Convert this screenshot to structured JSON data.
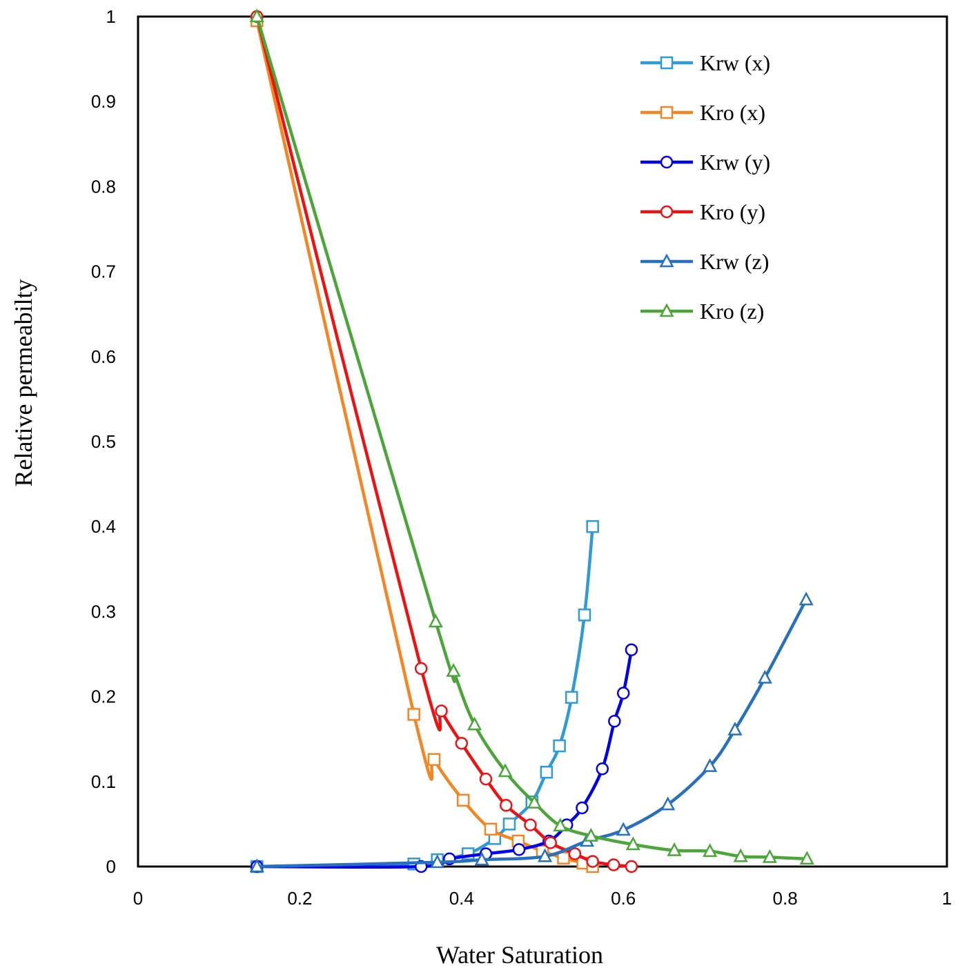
{
  "chart_data": {
    "type": "line",
    "xlabel": "Water Saturation",
    "ylabel": "Relative permeabilty",
    "xlim": [
      0,
      1
    ],
    "ylim": [
      0,
      1
    ],
    "x_ticks": [
      "0",
      "0.2",
      "0.4",
      "0.6",
      "0.8",
      "1"
    ],
    "y_ticks": [
      "0",
      "0.1",
      "0.2",
      "0.3",
      "0.4",
      "0.5",
      "0.6",
      "0.7",
      "0.8",
      "0.9",
      "1"
    ],
    "grid": false,
    "legend_position": "top-right",
    "series": [
      {
        "name": "Krw (x)",
        "color": "#2e9ad6",
        "marker": "square",
        "x": [
          0.147,
          0.341,
          0.37,
          0.408,
          0.441,
          0.459,
          0.487,
          0.505,
          0.521,
          0.536,
          0.552,
          0.562
        ],
        "y": [
          0.0,
          0.003,
          0.008,
          0.015,
          0.033,
          0.05,
          0.076,
          0.111,
          0.142,
          0.199,
          0.296,
          0.4
        ]
      },
      {
        "name": "Kro (x)",
        "color": "#f58523",
        "marker": "square",
        "x": [
          0.147,
          0.341,
          0.366,
          0.402,
          0.436,
          0.47,
          0.5,
          0.526,
          0.55,
          0.562
        ],
        "y": [
          0.995,
          0.179,
          0.126,
          0.078,
          0.044,
          0.03,
          0.018,
          0.01,
          0.004,
          0.0
        ]
      },
      {
        "name": "Krw (y)",
        "color": "#0000ee",
        "marker": "circle",
        "x": [
          0.147,
          0.35,
          0.385,
          0.43,
          0.471,
          0.508,
          0.53,
          0.549,
          0.574,
          0.589,
          0.6,
          0.61
        ],
        "y": [
          0.0,
          0.0,
          0.009,
          0.015,
          0.02,
          0.03,
          0.049,
          0.069,
          0.115,
          0.171,
          0.204,
          0.255
        ]
      },
      {
        "name": "Kro (y)",
        "color": "#ee1111",
        "marker": "circle",
        "x": [
          0.147,
          0.35,
          0.375,
          0.4,
          0.43,
          0.455,
          0.485,
          0.51,
          0.54,
          0.562,
          0.588,
          0.61
        ],
        "y": [
          1.0,
          0.233,
          0.183,
          0.145,
          0.103,
          0.072,
          0.049,
          0.028,
          0.015,
          0.006,
          0.002,
          0.0
        ]
      },
      {
        "name": "Krw (z)",
        "color": "#2671bf",
        "marker": "triangle",
        "x": [
          0.147,
          0.37,
          0.425,
          0.503,
          0.555,
          0.6,
          0.655,
          0.707,
          0.738,
          0.775,
          0.826
        ],
        "y": [
          0.0,
          0.005,
          0.008,
          0.012,
          0.03,
          0.043,
          0.073,
          0.118,
          0.161,
          0.222,
          0.314
        ]
      },
      {
        "name": "Kro (z)",
        "color": "#4aa637",
        "marker": "triangle",
        "x": [
          0.147,
          0.368,
          0.39,
          0.416,
          0.454,
          0.49,
          0.522,
          0.56,
          0.612,
          0.663,
          0.707,
          0.745,
          0.781,
          0.827
        ],
        "y": [
          1.0,
          0.288,
          0.23,
          0.167,
          0.112,
          0.075,
          0.048,
          0.036,
          0.026,
          0.019,
          0.018,
          0.012,
          0.011,
          0.009
        ]
      }
    ]
  }
}
